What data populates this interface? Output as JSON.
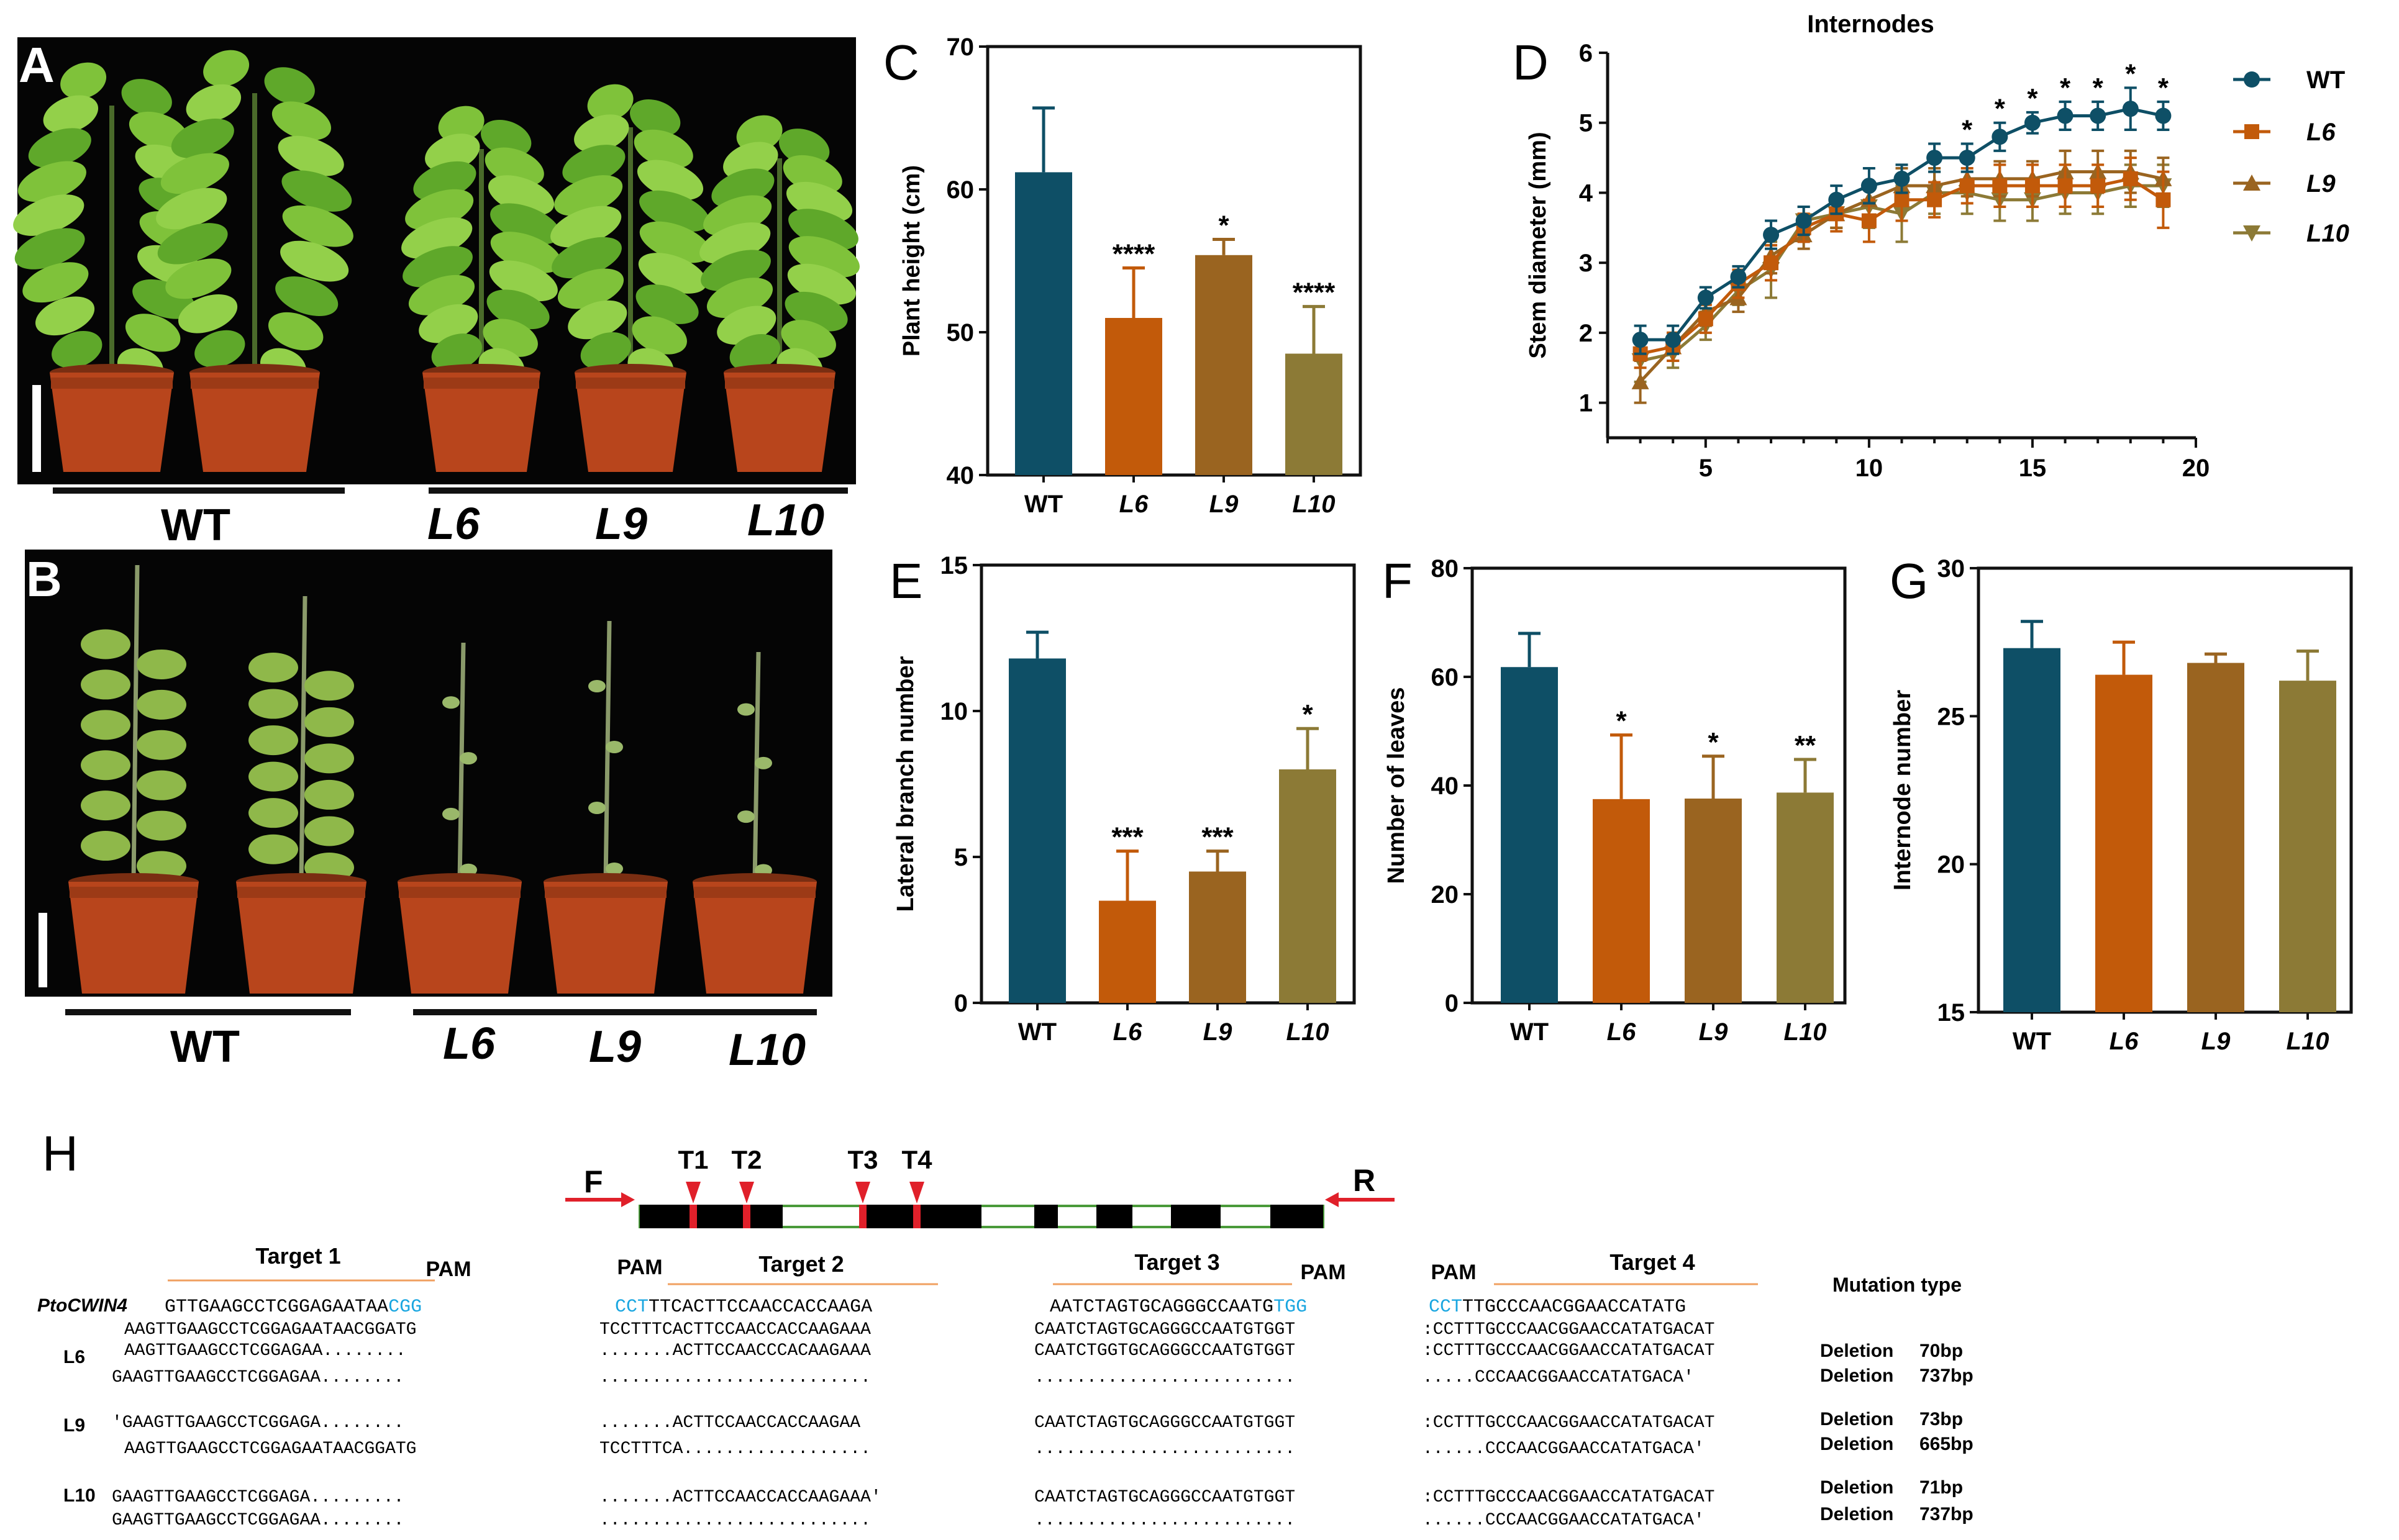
{
  "colors": {
    "wt": "#0e4f66",
    "l6": "#c25a0a",
    "l9": "#9a6420",
    "l10": "#8c7a36",
    "pam": "#1aa6e0",
    "target_line": "#f0a060",
    "arrow": "#e0202a",
    "exon": "#000000",
    "intron": "#4a9a3a"
  },
  "photos": [
    {
      "panel": "A",
      "groups": [
        {
          "label": "WT",
          "pots": 2
        },
        {
          "label": "L6",
          "pots": 1
        },
        {
          "label": "L9",
          "pots": 1
        },
        {
          "label": "L10",
          "pots": 1
        }
      ]
    },
    {
      "panel": "B",
      "groups": [
        {
          "label": "WT",
          "pots": 2
        },
        {
          "label": "L6",
          "pots": 1
        },
        {
          "label": "L9",
          "pots": 1
        },
        {
          "label": "L10",
          "pots": 1
        }
      ]
    }
  ],
  "chart_data": [
    {
      "panel": "C",
      "type": "bar",
      "ylabel": "Plant height (cm)",
      "categories": [
        "WT",
        "L6",
        "L9",
        "L10"
      ],
      "values": [
        61.2,
        51.0,
        55.4,
        48.5
      ],
      "errors": [
        4.5,
        3.5,
        1.1,
        3.3
      ],
      "significance": [
        "",
        "****",
        "*",
        "****"
      ],
      "ylim": [
        40,
        70
      ],
      "yticks": [
        "40",
        "50",
        "60",
        "70"
      ]
    },
    {
      "panel": "D",
      "type": "line",
      "title": "Internodes",
      "ylabel": "Stem diameter (mm)",
      "xlim": [
        2,
        20
      ],
      "ylim": [
        0.5,
        6
      ],
      "xticks": [
        "5",
        "10",
        "15",
        "20"
      ],
      "yticks": [
        "1",
        "2",
        "3",
        "4",
        "5",
        "6"
      ],
      "x": [
        3,
        4,
        5,
        6,
        7,
        8,
        9,
        10,
        11,
        12,
        13,
        14,
        15,
        16,
        17,
        18,
        19
      ],
      "series": [
        {
          "name": "WT",
          "marker": "circle",
          "values": [
            1.9,
            1.9,
            2.5,
            2.8,
            3.4,
            3.6,
            3.9,
            4.1,
            4.2,
            4.5,
            4.5,
            4.8,
            5.0,
            5.1,
            5.1,
            5.2,
            5.1
          ],
          "errors": [
            0.2,
            0.2,
            0.15,
            0.15,
            0.2,
            0.2,
            0.2,
            0.25,
            0.2,
            0.2,
            0.2,
            0.2,
            0.15,
            0.2,
            0.2,
            0.3,
            0.2
          ]
        },
        {
          "name": "L6",
          "marker": "square",
          "values": [
            1.7,
            1.8,
            2.2,
            2.7,
            3.0,
            3.5,
            3.7,
            3.6,
            3.9,
            3.9,
            4.1,
            4.1,
            4.1,
            4.1,
            4.1,
            4.2,
            3.9
          ],
          "errors": [
            0.2,
            0.2,
            0.2,
            0.2,
            0.25,
            0.2,
            0.25,
            0.3,
            0.3,
            0.25,
            0.25,
            0.3,
            0.3,
            0.3,
            0.3,
            0.3,
            0.4
          ]
        },
        {
          "name": "L9",
          "marker": "triangle",
          "values": [
            1.3,
            1.8,
            2.3,
            2.5,
            3.1,
            3.4,
            3.7,
            3.9,
            4.1,
            4.1,
            4.2,
            4.2,
            4.2,
            4.3,
            4.3,
            4.3,
            4.2
          ],
          "errors": [
            0.3,
            0.2,
            0.2,
            0.2,
            0.25,
            0.2,
            0.2,
            0.25,
            0.25,
            0.25,
            0.25,
            0.25,
            0.25,
            0.3,
            0.3,
            0.3,
            0.3
          ]
        },
        {
          "name": "L10",
          "marker": "triangle-down",
          "values": [
            1.6,
            1.7,
            2.1,
            2.6,
            2.9,
            3.6,
            3.7,
            3.8,
            3.7,
            4.0,
            4.0,
            3.9,
            3.9,
            4.0,
            4.0,
            4.1,
            4.1
          ],
          "errors": [
            0.3,
            0.2,
            0.2,
            0.2,
            0.4,
            0.2,
            0.2,
            0.3,
            0.4,
            0.3,
            0.3,
            0.3,
            0.3,
            0.3,
            0.3,
            0.3,
            0.3
          ]
        }
      ],
      "significance": [
        {
          "x": 13,
          "label": "*"
        },
        {
          "x": 14,
          "label": "*"
        },
        {
          "x": 15,
          "label": "*"
        },
        {
          "x": 16,
          "label": "*"
        },
        {
          "x": 17,
          "label": "*"
        },
        {
          "x": 18,
          "label": "*"
        },
        {
          "x": 19,
          "label": "*"
        }
      ],
      "legend": [
        "WT",
        "L6",
        "L9",
        "L10"
      ]
    },
    {
      "panel": "E",
      "type": "bar",
      "ylabel": "Lateral branch number",
      "categories": [
        "WT",
        "L6",
        "L9",
        "L10"
      ],
      "values": [
        11.8,
        3.5,
        4.5,
        8.0
      ],
      "errors": [
        0.9,
        1.7,
        0.7,
        1.4
      ],
      "significance": [
        "",
        "***",
        "***",
        "*"
      ],
      "ylim": [
        0,
        15
      ],
      "yticks": [
        "0",
        "5",
        "10",
        "15"
      ]
    },
    {
      "panel": "F",
      "type": "bar",
      "ylabel": "Number of leaves",
      "categories": [
        "WT",
        "L6",
        "L9",
        "L10"
      ],
      "values": [
        61.8,
        37.5,
        37.6,
        38.7
      ],
      "errors": [
        6.2,
        11.8,
        7.8,
        6.1
      ],
      "significance": [
        "",
        "*",
        "*",
        "**"
      ],
      "ylim": [
        0,
        80
      ],
      "yticks": [
        "0",
        "20",
        "40",
        "60",
        "80"
      ]
    },
    {
      "panel": "G",
      "type": "bar",
      "ylabel": "Internode number",
      "categories": [
        "WT",
        "L6",
        "L9",
        "L10"
      ],
      "values": [
        27.3,
        26.4,
        26.8,
        26.2
      ],
      "errors": [
        0.9,
        1.1,
        0.3,
        1.0
      ],
      "significance": [
        "",
        "",
        "",
        ""
      ],
      "ylim": [
        15,
        30
      ],
      "yticks": [
        "15",
        "20",
        "25",
        "30"
      ]
    }
  ],
  "gene_diagram": {
    "primer_forward": "F",
    "primer_reverse": "R",
    "targets": [
      "T1",
      "T2",
      "T3",
      "T4"
    ],
    "exon_blocks": 7
  },
  "alignment": {
    "panel": "H",
    "gene_name": "PtoCWIN4",
    "mutation_type_header": "Mutation type",
    "blocks": [
      {
        "title": "Target 1",
        "pam_label": "PAM",
        "reference_pre": "",
        "reference_pam": "",
        "reference_main": "GTTGAAGCCTCGGAGAATAA",
        "reference_post_pam": "CGG",
        "rows": [
          "AAGTTGAAGCCTCGGAGAATAACGGATG",
          "AAGTTGAAGCCTCGGAGAA........",
          "GAAGTTGAAGCCTCGGAGAA........",
          "'GAAGTTGAAGCCTCGGAGA........",
          "AAGTTGAAGCCTCGGAGAATAACGGATG",
          "GAAGTTGAAGCCTCGGAGA.........",
          "GAAGTTGAAGCCTCGGAGAA........"
        ]
      },
      {
        "title": "Target 2",
        "pam_label": "PAM",
        "reference_pre": "CCT",
        "reference_main": "TTCACTTCCAACCACCAAGA",
        "reference_post_pam": "",
        "rows": [
          "TCCTTTCACTTCCAACCACCAAGAAA",
          ".......ACTTCCAACCCACAAGAAA",
          "..........................",
          ".......ACTTCCAACCACCAAGAA",
          "TCCTTTCA..................",
          ".......ACTTCCAACCACCAAGAAA'",
          ".........................."
        ]
      },
      {
        "title": "Target 3",
        "pam_label": "PAM",
        "reference_pre": "",
        "reference_main": "AATCTAGTGCAGGGCCAATG",
        "reference_post_pam": "TGG",
        "rows": [
          "CAATCTAGTGCAGGGCCAATGTGGT",
          "CAATCTGGTGCAGGGCCAATGTGGT",
          ".........................",
          "CAATCTAGTGCAGGGCCAATGTGGT",
          ".........................",
          "CAATCTAGTGCAGGGCCAATGTGGT",
          "........................."
        ]
      },
      {
        "title": "Target 4",
        "pam_label": "PAM",
        "reference_pre": "CCT",
        "reference_main": "TTGCCCAACGGAACCATATG",
        "reference_post_pam": "",
        "rows": [
          ":CCTTTGCCCAACGGAACCATATGACAT",
          ":CCTTTGCCCAACGGAACCATATGACAT",
          ".....CCCAACGGAACCATATGACA'",
          ":CCTTTGCCCAACGGAACCATATGACAT",
          "......CCCAACGGAACCATATGACA'",
          ":CCTTTGCCCAACGGAACCATATGACAT",
          "......CCCAACGGAACCATATGACA'"
        ]
      }
    ],
    "lines": [
      {
        "label": "L6",
        "mutations": [
          {
            "type": "Deletion",
            "size": "70bp"
          },
          {
            "type": "Deletion",
            "size": "737bp"
          }
        ]
      },
      {
        "label": "L9",
        "mutations": [
          {
            "type": "Deletion",
            "size": "73bp"
          },
          {
            "type": "Deletion",
            "size": "665bp"
          }
        ]
      },
      {
        "label": "L10",
        "mutations": [
          {
            "type": "Deletion",
            "size": "71bp"
          },
          {
            "type": "Deletion",
            "size": "737bp"
          }
        ]
      }
    ]
  }
}
